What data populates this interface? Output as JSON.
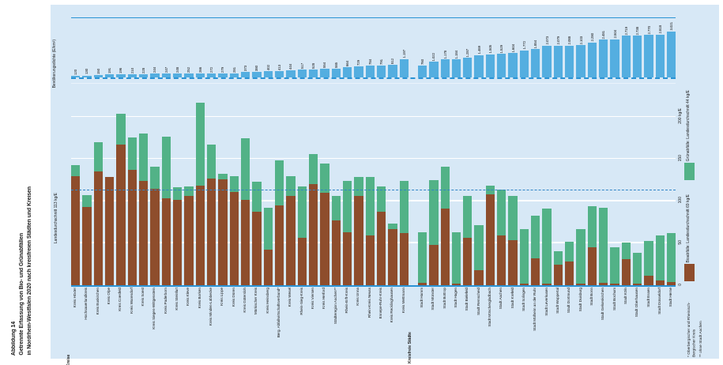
{
  "title": {
    "figure_no": "Abbildung 14",
    "line1": "Getrennte Erfassung von Bio- und Grünabfällen",
    "line2": "in Nordrhein-Westfalen 2020 nach kreisfreien Städten und Kreisen"
  },
  "chart_data": {
    "type": "stacked-bar",
    "units": "kg/E",
    "top_axis_label": "Bevölkerungsdichte (E/km²)",
    "left_axis_label": "Landesdurchschnitt 113 kg/E",
    "dashed_line_value": 113,
    "ylim": [
      0,
      240
    ],
    "top_ylim": [
      0,
      3100
    ],
    "grid": "on",
    "right_axis_ticks": [
      {
        "label": "200 kg/E",
        "value": 200
      },
      {
        "label": "150",
        "value": 150
      },
      {
        "label": "100",
        "value": 100
      },
      {
        "label": "50",
        "value": 50
      },
      {
        "label": "0",
        "value": 0
      }
    ],
    "colors": {
      "bio": "#8e4d2c",
      "gruen": "#52b287",
      "density": "#54aee0",
      "line": "#2a93d5"
    },
    "legend": [
      {
        "label": "Grünabfälle: Landesdurchschnitt 44 kg/E",
        "color": "#52b287"
      },
      {
        "label": "Bioabfälle: Landesdurchschnitt 69 kg/E",
        "color": "#8e4d2c"
      }
    ],
    "footnotes": [
      "* Oberbergischer und Rheinisch-Bergischer Kreis",
      "** ohne Stadt Aachen"
    ],
    "series_note": "bio and gruen in kg/E, density in E/km²",
    "groups": [
      {
        "label": "Kreise",
        "entries": [
          {
            "name": "Kreis Höxter",
            "density": "120",
            "bio": 130,
            "gruen": 13
          },
          {
            "name": "Hochsauerlandkreis",
            "density": "130",
            "bio": 93,
            "gruen": 14
          },
          {
            "name": "Kreis Euskirchen",
            "density": "150",
            "bio": 135,
            "gruen": 35
          },
          {
            "name": "Kreis Olpe",
            "density": "191",
            "bio": 129,
            "gruen": 0
          },
          {
            "name": "Kreis Coesfeld",
            "density": "196",
            "bio": 167,
            "gruen": 37
          },
          {
            "name": "Kreis Warendorf",
            "density": "210",
            "bio": 137,
            "gruen": 39
          },
          {
            "name": "Kreis Soest",
            "density": "228",
            "bio": 124,
            "gruen": 56
          },
          {
            "name": "Kreis Siegen-Wittgenstein",
            "density": "244",
            "bio": 115,
            "gruen": 26
          },
          {
            "name": "Kreis Paderborn",
            "density": "247",
            "bio": 103,
            "gruen": 74
          },
          {
            "name": "Kreis Steinfurt",
            "density": "248",
            "bio": 101,
            "gruen": 15
          },
          {
            "name": "Kreis Kleve",
            "density": "252",
            "bio": 106,
            "gruen": 11
          },
          {
            "name": "Kreis Borken",
            "density": "266",
            "bio": 118,
            "gruen": 99
          },
          {
            "name": "Kreis Minden-Lübbecke",
            "density": "272",
            "bio": 127,
            "gruen": 40
          },
          {
            "name": "Kreis Lippe",
            "density": "279",
            "bio": 126,
            "gruen": 6
          },
          {
            "name": "Kreis Düren",
            "density": "281",
            "bio": 111,
            "gruen": 19
          },
          {
            "name": "Kreis Gütersloh",
            "density": "373",
            "bio": 101,
            "gruen": 74
          },
          {
            "name": "Märkischer Kreis",
            "density": "380",
            "bio": 87,
            "gruen": 36
          },
          {
            "name": "Kreis Heinsberg",
            "density": "402",
            "bio": 42,
            "gruen": 50
          },
          {
            "name": "Berg. Abfallwirtschaftsverband*",
            "density": "413",
            "bio": 95,
            "gruen": 53
          },
          {
            "name": "Kreis Wesel",
            "density": "444",
            "bio": 106,
            "gruen": 24
          },
          {
            "name": "Rhein-Sieg-Kreis",
            "density": "517",
            "bio": 56,
            "gruen": 61
          },
          {
            "name": "Kreis Viersen",
            "density": "528",
            "bio": 120,
            "gruen": 36
          },
          {
            "name": "Kreis Herford",
            "density": "554",
            "bio": 110,
            "gruen": 35
          },
          {
            "name": "Städteregion Aachen**",
            "density": "585",
            "bio": 77,
            "gruen": 29
          },
          {
            "name": "Rhein-Erft-Kreis",
            "density": "664",
            "bio": 63,
            "gruen": 61
          },
          {
            "name": "Kreis Unna",
            "density": "729",
            "bio": 106,
            "gruen": 23
          },
          {
            "name": "Rhein-Kreis Neuss",
            "density": "784",
            "bio": 59,
            "gruen": 70
          },
          {
            "name": "Ennepe-Ruhr-Kreis",
            "density": "791",
            "bio": 87,
            "gruen": 30
          },
          {
            "name": "Kreis Recklinghausen",
            "density": "812",
            "bio": 67,
            "gruen": 6
          },
          {
            "name": "Kreis Mettmann",
            "density": "1.197",
            "bio": 62,
            "gruen": 62
          }
        ]
      },
      {
        "label": "Kreisfreie Städte",
        "entries": [
          {
            "name": "Stadt Hamm",
            "density": "760",
            "bio": 3,
            "gruen": 60
          },
          {
            "name": "Stadt Münster",
            "density": "1.022",
            "bio": 48,
            "gruen": 77
          },
          {
            "name": "Stadt Bottrop",
            "density": "1.178",
            "bio": 91,
            "gruen": 50
          },
          {
            "name": "Stadt Hagen",
            "density": "1.184",
            "bio": 2,
            "gruen": 61
          },
          {
            "name": "Stadt Bielefeld",
            "density": "1.287",
            "bio": 56,
            "gruen": 50
          },
          {
            "name": "Stadt Remscheid",
            "density": "1.469",
            "bio": 18,
            "gruen": 53
          },
          {
            "name": "Stadt Mönchengladbach",
            "density": "1.505",
            "bio": 108,
            "gruen": 10
          },
          {
            "name": "Stadt Aachen",
            "density": "1.529",
            "bio": 59,
            "gruen": 55
          },
          {
            "name": "Stadt Krefeld",
            "density": "1.604",
            "bio": 54,
            "gruen": 52
          },
          {
            "name": "Stadt Solingen",
            "density": "1.772",
            "bio": 2,
            "gruen": 65
          },
          {
            "name": "Stadt Mülheim an der Ruhr",
            "density": "1.854",
            "bio": 32,
            "gruen": 51
          },
          {
            "name": "Stadt Leverkusen",
            "density": "2.073",
            "bio": 2,
            "gruen": 89
          },
          {
            "name": "Stadt Wuppertal",
            "density": "2.079",
            "bio": 24,
            "gruen": 16
          },
          {
            "name": "Stadt Dortmund",
            "density": "2.088",
            "bio": 28,
            "gruen": 24
          },
          {
            "name": "Stadt Duisburg",
            "density": "2.103",
            "bio": 2,
            "gruen": 65
          },
          {
            "name": "Stadt Bonn",
            "density": "2.280",
            "bio": 45,
            "gruen": 49
          },
          {
            "name": "Stadt Gelsenkirchen",
            "density": "2.481",
            "bio": 3,
            "gruen": 89
          },
          {
            "name": "Stadt Bochum",
            "density": "2.504",
            "bio": 2,
            "gruen": 43
          },
          {
            "name": "Stadt Köln",
            "density": "2.719",
            "bio": 31,
            "gruen": 20
          },
          {
            "name": "Stadt Oberhausen",
            "density": "2.738",
            "bio": 2,
            "gruen": 37
          },
          {
            "name": "Stadt Essen",
            "density": "2.770",
            "bio": 11,
            "gruen": 42
          },
          {
            "name": "Stadt Düsseldorf",
            "density": "2.818",
            "bio": 6,
            "gruen": 53
          },
          {
            "name": "Stadt Herne",
            "density": "3.021",
            "bio": 4,
            "gruen": 58
          }
        ]
      }
    ]
  }
}
